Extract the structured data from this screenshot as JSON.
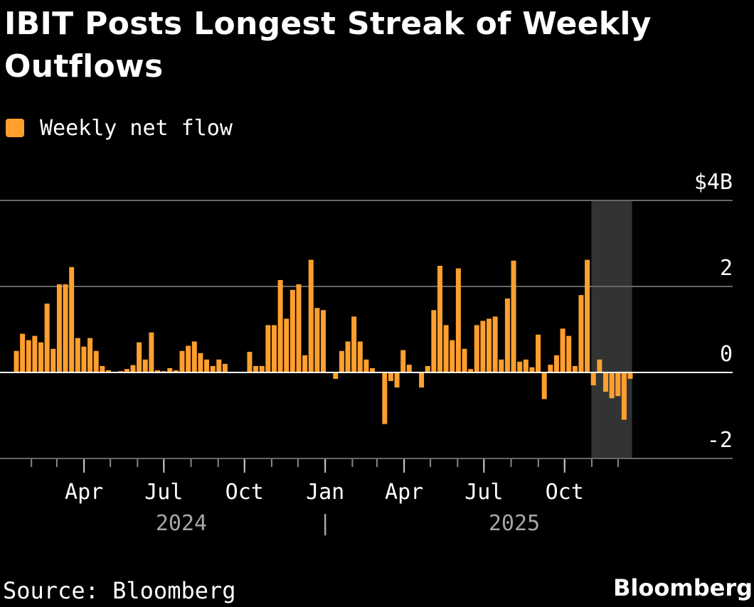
{
  "title": "IBIT Posts Longest Streak of Weekly Outflows",
  "source": "Source: Bloomberg",
  "brand": "Bloomberg",
  "colors": {
    "bar": "#ff9f2e",
    "background": "#000000",
    "highlight": "#333333",
    "grid": "#666666",
    "zero": "#ffffff"
  },
  "chart_data": {
    "type": "bar",
    "legend": [
      "Weekly net flow"
    ],
    "series": [
      {
        "name": "Weekly net flow",
        "values": [
          0.5,
          0.9,
          0.75,
          0.85,
          0.7,
          1.6,
          0.55,
          2.05,
          2.05,
          2.45,
          0.8,
          0.6,
          0.8,
          0.5,
          0.15,
          0.05,
          0.0,
          0.03,
          0.08,
          0.17,
          0.7,
          0.3,
          0.93,
          0.05,
          0.03,
          0.1,
          0.05,
          0.5,
          0.62,
          0.72,
          0.45,
          0.3,
          0.15,
          0.3,
          0.2,
          0.0,
          0.0,
          0.0,
          0.48,
          0.15,
          0.15,
          1.1,
          1.1,
          2.15,
          1.25,
          1.92,
          2.05,
          0.4,
          2.62,
          1.5,
          1.45,
          0.0,
          -0.15,
          0.5,
          0.72,
          1.3,
          0.72,
          0.3,
          0.1,
          0.0,
          -1.2,
          -0.2,
          -0.35,
          0.52,
          0.18,
          0.0,
          -0.35,
          0.15,
          1.45,
          2.48,
          1.1,
          0.75,
          2.42,
          0.55,
          0.08,
          1.1,
          1.2,
          1.25,
          1.3,
          0.3,
          1.72,
          2.6,
          0.25,
          0.3,
          0.12,
          0.88,
          -0.62,
          0.18,
          0.4,
          1.02,
          0.85,
          0.15,
          1.8,
          2.62,
          -0.3,
          0.3,
          -0.45,
          -0.6,
          -0.55,
          -1.1,
          -0.15
        ]
      }
    ],
    "x_start": "2024-01-12",
    "x_interval": "weekly",
    "ylim": [
      -2,
      4
    ],
    "yticks": [
      {
        "value": 4,
        "label": "$4B"
      },
      {
        "value": 2,
        "label": "2"
      },
      {
        "value": 0,
        "label": "0"
      },
      {
        "value": -2,
        "label": "-2"
      }
    ],
    "xticks": [
      {
        "date": "2024-04-01",
        "label": "Apr"
      },
      {
        "date": "2024-07-01",
        "label": "Jul"
      },
      {
        "date": "2024-10-01",
        "label": "Oct"
      },
      {
        "date": "2025-01-01",
        "label": "Jan"
      },
      {
        "date": "2025-04-01",
        "label": "Apr"
      },
      {
        "date": "2025-07-01",
        "label": "Jul"
      },
      {
        "date": "2025-10-01",
        "label": "Oct"
      }
    ],
    "year_labels": [
      "2024",
      "2025"
    ],
    "year_separator": "|",
    "highlight_range": [
      "2025-11-03",
      "2025-12-08"
    ],
    "grid": true
  }
}
